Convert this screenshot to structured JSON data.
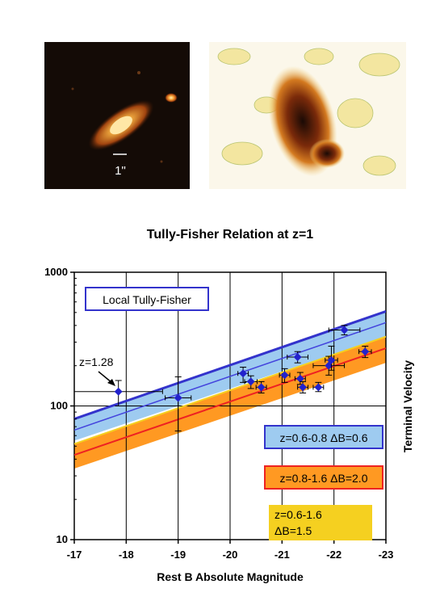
{
  "images": {
    "galaxy_photo": {
      "scale_label": "1\""
    },
    "intensity_map": {}
  },
  "chart_data": {
    "type": "scatter",
    "title": "Tully-Fisher Relation at z=1",
    "xlabel": "Rest B Absolute Magnitude",
    "ylabel": "Terminal Velocity",
    "xlim": [
      -17,
      -23
    ],
    "ylim": [
      10,
      1000
    ],
    "yscale": "log",
    "grid": true,
    "xticks": [
      "-17",
      "-18",
      "-19",
      "-20",
      "-21",
      "-22",
      "-23"
    ],
    "yticks": [
      "10",
      "100",
      "1000"
    ],
    "legend": {
      "local": "Local Tully-Fisher",
      "blue": "z=0.6-0.8 ΔB=0.6",
      "red": "z=0.8-1.6 ΔB=2.0",
      "yellow_line1": "z=0.6-1.6",
      "yellow_line2": "ΔB=1.5"
    },
    "annotation": "z=1.28",
    "colors": {
      "local": "#3333cc",
      "blue_band": "#9ecbf0",
      "blue_line": "#4444dd",
      "red_band": "#ff9922",
      "red_line": "#ee2222",
      "yellow": "#f5d020",
      "points": "#2222cc"
    },
    "bands": {
      "local_line": [
        [
          -17,
          80
        ],
        [
          -23,
          510
        ]
      ],
      "blue_band": {
        "upper": [
          [
            -17,
            80
          ],
          [
            -23,
            510
          ]
        ],
        "lower": [
          [
            -17,
            55
          ],
          [
            -23,
            330
          ]
        ]
      },
      "blue_line": [
        [
          -17,
          66
        ],
        [
          -23,
          420
        ]
      ],
      "yellow_line": [
        [
          -17,
          52
        ],
        [
          -23,
          330
        ]
      ],
      "red_band": {
        "upper": [
          [
            -17,
            52
          ],
          [
            -23,
            330
          ]
        ],
        "lower": [
          [
            -17,
            34
          ],
          [
            -23,
            210
          ]
        ]
      },
      "red_line": [
        [
          -17,
          43
        ],
        [
          -23,
          270
        ]
      ]
    },
    "points": [
      {
        "x": -17.85,
        "y": 128,
        "xerr": 0.85,
        "yerr": [
          100,
          155
        ]
      },
      {
        "x": -19.0,
        "y": 115,
        "xerr": 0.25,
        "yerr": [
          65,
          165
        ]
      },
      {
        "x": -20.25,
        "y": 175,
        "xerr": 0.1,
        "yerr": [
          150,
          195
        ]
      },
      {
        "x": -20.4,
        "y": 152,
        "xerr": 0.12,
        "yerr": [
          135,
          168
        ]
      },
      {
        "x": -20.6,
        "y": 138,
        "xerr": 0.1,
        "yerr": [
          125,
          152
        ]
      },
      {
        "x": -21.05,
        "y": 170,
        "xerr": 0.1,
        "yerr": [
          150,
          190
        ]
      },
      {
        "x": -21.3,
        "y": 232,
        "xerr": 0.2,
        "yerr": [
          210,
          255
        ]
      },
      {
        "x": -21.35,
        "y": 160,
        "xerr": 0.1,
        "yerr": [
          145,
          178
        ]
      },
      {
        "x": -21.4,
        "y": 138,
        "xerr": 0.1,
        "yerr": [
          125,
          152
        ]
      },
      {
        "x": -21.7,
        "y": 138,
        "xerr": 0.1,
        "yerr": [
          128,
          150
        ]
      },
      {
        "x": -21.9,
        "y": 200,
        "xerr": 0.3,
        "yerr": [
          170,
          235
        ]
      },
      {
        "x": -21.95,
        "y": 220,
        "xerr": 0.12,
        "yerr": [
          185,
          280
        ]
      },
      {
        "x": -22.2,
        "y": 370,
        "xerr": 0.3,
        "yerr": [
          340,
          400
        ]
      },
      {
        "x": -22.6,
        "y": 255,
        "xerr": 0.12,
        "yerr": [
          230,
          280
        ]
      }
    ]
  }
}
